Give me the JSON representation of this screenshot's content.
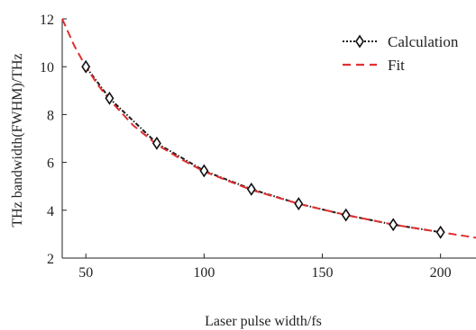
{
  "chart_data": {
    "type": "line",
    "title": "",
    "xlabel": "Laser pulse width/fs",
    "ylabel": "THz bandwidth(FWHM)/THz",
    "xlim": [
      40,
      215
    ],
    "ylim": [
      2,
      12
    ],
    "xticks": [
      50,
      100,
      150,
      200
    ],
    "yticks": [
      2,
      4,
      6,
      8,
      10,
      12
    ],
    "grid": false,
    "legend_position": "top-right",
    "series": [
      {
        "name": "Calculation",
        "style": "dotted-dash-with-diamond-markers",
        "color": "#1a1a1a",
        "x": [
          50,
          60,
          80,
          100,
          120,
          140,
          160,
          180,
          200
        ],
        "y": [
          10.0,
          8.68,
          6.8,
          5.65,
          4.88,
          4.27,
          3.8,
          3.4,
          3.08
        ]
      },
      {
        "name": "Fit",
        "style": "dashed",
        "color": "#e03030",
        "x": [
          40,
          45,
          50,
          55,
          60,
          70,
          80,
          90,
          100,
          120,
          140,
          160,
          180,
          200,
          215
        ],
        "y": [
          12.0,
          10.9,
          10.0,
          9.25,
          8.62,
          7.55,
          6.75,
          6.15,
          5.62,
          4.85,
          4.27,
          3.8,
          3.4,
          3.08,
          2.85
        ]
      }
    ]
  }
}
